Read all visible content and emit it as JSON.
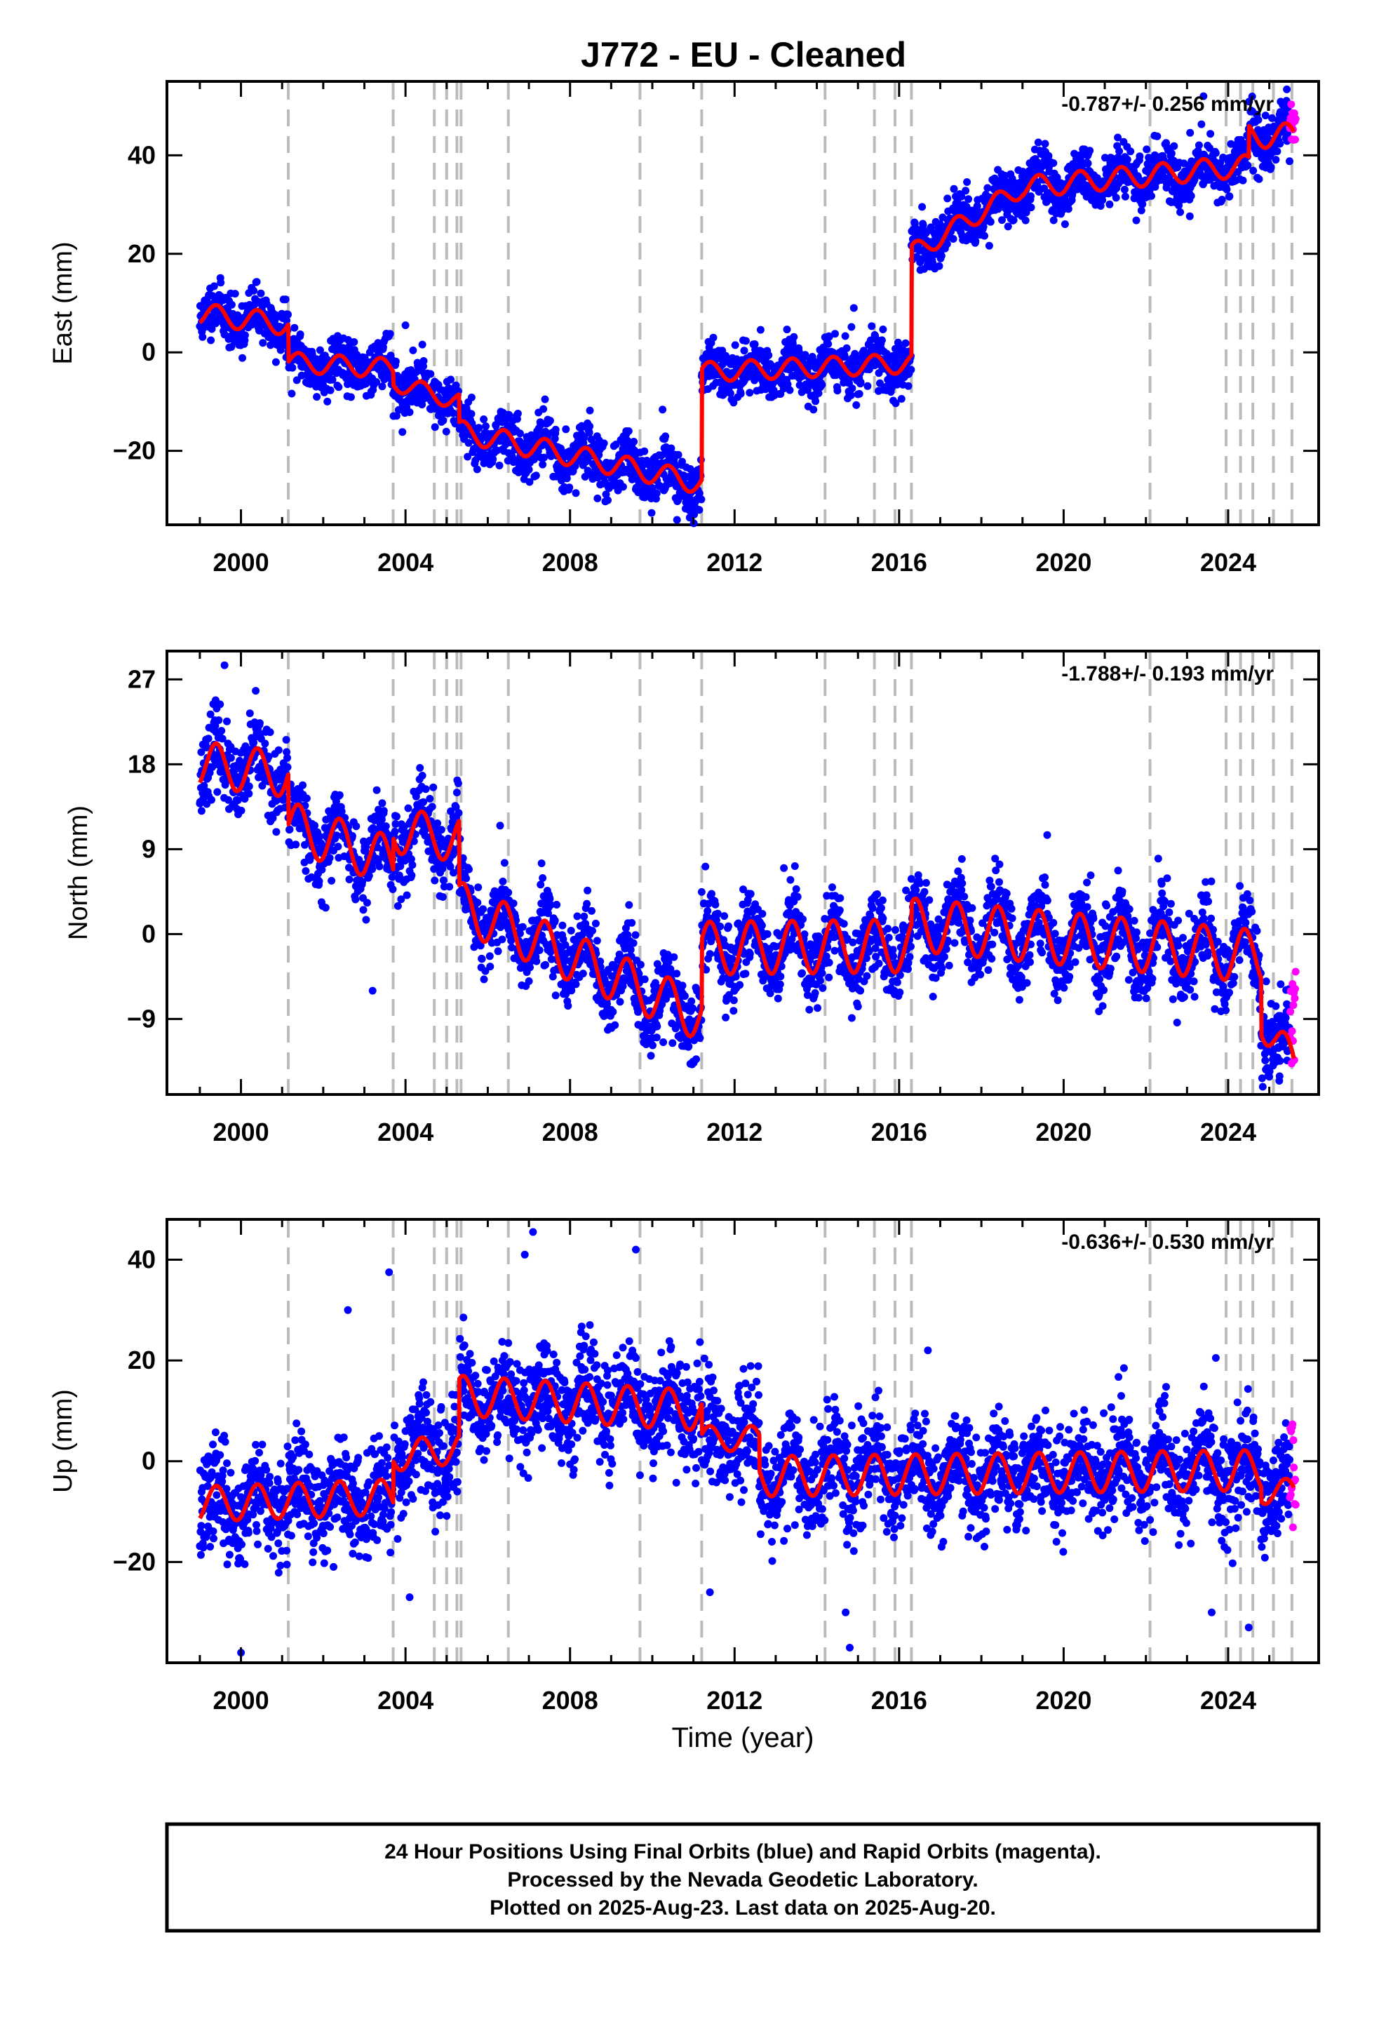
{
  "title": "J772  - EU - Cleaned",
  "footer": {
    "lines": [
      "24 Hour Positions Using Final Orbits (blue) and Rapid Orbits (magenta).",
      "Processed by the Nevada Geodetic Laboratory.",
      "Plotted on 2025-Aug-23. Last data on 2025-Aug-20."
    ]
  },
  "colors": {
    "final": "#0000ff",
    "rapid": "#ff00ff",
    "model": "#ff0000",
    "events": "#bbbbbb"
  },
  "chart_data": [
    {
      "type": "scatter",
      "component": "east",
      "ylabel": "East (mm)",
      "xlabel": "",
      "rate_label": "-0.787+/- 0.256 mm/yr",
      "xlim": [
        1998.2,
        2026.2
      ],
      "ylim": [
        -35,
        55
      ],
      "x_ticks": [
        2000,
        2004,
        2008,
        2012,
        2016,
        2020,
        2024
      ],
      "x_tick_labels": [
        "2000",
        "2004",
        "2008",
        "2012",
        "2016",
        "2020",
        "2024"
      ],
      "y_ticks": [
        -20,
        0,
        20,
        40
      ],
      "y_tick_labels": [
        "−20",
        "0",
        "20",
        "40"
      ],
      "event_lines": [
        2001.15,
        2003.7,
        2004.7,
        2005.0,
        2005.25,
        2005.35,
        2006.5,
        2009.7,
        2011.2,
        2014.2,
        2015.4,
        2015.9,
        2016.3,
        2022.1,
        2023.95,
        2024.3,
        2024.6,
        2025.1,
        2025.55
      ],
      "model": {
        "start_x": 1999.0,
        "end_x": 2025.6,
        "segments": [
          {
            "t0": 1999.0,
            "t1": 2001.15,
            "base": 7.8,
            "slope": -1.0,
            "amp": 2.2
          },
          {
            "t0": 2001.15,
            "t1": 2003.7,
            "base": -2.0,
            "slope": -0.5,
            "amp": 2.0
          },
          {
            "t0": 2003.7,
            "t1": 2005.3,
            "base": -6.0,
            "slope": -2.5,
            "amp": 1.8
          },
          {
            "t0": 2005.3,
            "t1": 2011.2,
            "base": -16.0,
            "slope": -1.8,
            "amp": 2.2
          },
          {
            "t0": 2011.2,
            "t1": 2016.3,
            "base": -4.0,
            "slope": 0.35,
            "amp": 2.0
          },
          {
            "t0": 2016.3,
            "t1": 2019.0,
            "base": 20.0,
            "slope": 5.0,
            "amp": 2.0
          },
          {
            "t0": 2019.0,
            "t1": 2024.5,
            "base": 33.5,
            "slope": 0.8,
            "amp": 2.2
          },
          {
            "t0": 2024.5,
            "t1": 2025.6,
            "base": 44.0,
            "slope": 0.0,
            "amp": 2.5
          }
        ]
      },
      "noise": 2.6,
      "outliers": [
        [
          2004.0,
          5.5
        ],
        [
          2002.1,
          -10.0
        ],
        [
          2010.6,
          -34.0
        ],
        [
          2023.4,
          52.0
        ],
        [
          2014.9,
          9.0
        ]
      ],
      "rapid": {
        "x0": 2025.5,
        "x1": 2025.64,
        "y": [
          43,
          52
        ]
      }
    },
    {
      "type": "scatter",
      "component": "north",
      "ylabel": "North (mm)",
      "xlabel": "",
      "rate_label": "-1.788+/- 0.193 mm/yr",
      "xlim": [
        1998.2,
        2026.2
      ],
      "ylim": [
        -17,
        30
      ],
      "x_ticks": [
        2000,
        2004,
        2008,
        2012,
        2016,
        2020,
        2024
      ],
      "x_tick_labels": [
        "2000",
        "2004",
        "2008",
        "2012",
        "2016",
        "2020",
        "2024"
      ],
      "y_ticks": [
        -9,
        0,
        9,
        18,
        27
      ],
      "y_tick_labels": [
        "−9",
        "0",
        "9",
        "18",
        "27"
      ],
      "event_lines": [
        2001.15,
        2003.7,
        2004.7,
        2005.0,
        2005.25,
        2005.35,
        2006.5,
        2009.7,
        2011.2,
        2014.2,
        2015.4,
        2015.9,
        2016.3,
        2022.1,
        2023.95,
        2024.3,
        2024.6,
        2025.1,
        2025.55
      ],
      "model": {
        "start_x": 1999.0,
        "end_x": 2025.6,
        "segments": [
          {
            "t0": 1999.0,
            "t1": 2001.15,
            "base": 18.0,
            "slope": -0.5,
            "amp": 2.4
          },
          {
            "t0": 2001.15,
            "t1": 2003.7,
            "base": 11.5,
            "slope": -1.5,
            "amp": 2.6
          },
          {
            "t0": 2003.7,
            "t1": 2005.3,
            "base": 11.0,
            "slope": -0.6,
            "amp": 2.4
          },
          {
            "t0": 2005.3,
            "t1": 2011.2,
            "base": 3.0,
            "slope": -2.0,
            "amp": 2.6
          },
          {
            "t0": 2011.2,
            "t1": 2016.3,
            "base": -1.5,
            "slope": 0.05,
            "amp": 2.8
          },
          {
            "t0": 2016.3,
            "t1": 2024.8,
            "base": 1.0,
            "slope": -0.4,
            "amp": 2.8
          },
          {
            "t0": 2024.8,
            "t1": 2025.6,
            "base": -9.0,
            "slope": -6.0,
            "amp": 2.0
          }
        ]
      },
      "noise": 2.0,
      "outliers": [
        [
          1999.6,
          28.5
        ],
        [
          2003.2,
          -6.0
        ],
        [
          2006.3,
          11.5
        ],
        [
          2019.6,
          10.5
        ],
        [
          2022.3,
          8.0
        ],
        [
          2013.2,
          7.0
        ]
      ],
      "rapid": {
        "x0": 2025.5,
        "x1": 2025.64,
        "y": [
          -14,
          -3
        ]
      }
    },
    {
      "type": "scatter",
      "component": "up",
      "ylabel": "Up (mm)",
      "xlabel": "Time (year)",
      "rate_label": "-0.636+/- 0.530 mm/yr",
      "xlim": [
        1998.2,
        2026.2
      ],
      "ylim": [
        -40,
        48
      ],
      "x_ticks": [
        2000,
        2004,
        2008,
        2012,
        2016,
        2020,
        2024
      ],
      "x_tick_labels": [
        "2000",
        "2004",
        "2008",
        "2012",
        "2016",
        "2020",
        "2024"
      ],
      "y_ticks": [
        -20,
        0,
        20,
        40
      ],
      "y_tick_labels": [
        "−20",
        "0",
        "20",
        "40"
      ],
      "event_lines": [
        2001.15,
        2003.7,
        2004.7,
        2005.0,
        2005.25,
        2005.35,
        2006.5,
        2009.7,
        2011.2,
        2014.2,
        2015.4,
        2015.9,
        2016.3,
        2022.1,
        2023.95,
        2024.3,
        2024.6,
        2025.1,
        2025.55
      ],
      "model": {
        "start_x": 1999.0,
        "end_x": 2025.6,
        "segments": [
          {
            "t0": 1999.0,
            "t1": 2003.7,
            "base": -8.5,
            "slope": 0.3,
            "amp": 3.5
          },
          {
            "t0": 2003.7,
            "t1": 2005.3,
            "base": 1.0,
            "slope": 1.0,
            "amp": 3.0
          },
          {
            "t0": 2005.3,
            "t1": 2011.2,
            "base": 13.0,
            "slope": -0.5,
            "amp": 4.0
          },
          {
            "t0": 2011.2,
            "t1": 2012.6,
            "base": 4.5,
            "slope": 0.0,
            "amp": 2.5
          },
          {
            "t0": 2012.6,
            "t1": 2024.8,
            "base": -3.0,
            "slope": 0.1,
            "amp": 4.0
          },
          {
            "t0": 2024.8,
            "t1": 2025.6,
            "base": -6.0,
            "slope": 0.0,
            "amp": 2.5
          }
        ]
      },
      "noise": 5.0,
      "outliers": [
        [
          2007.1,
          45.5
        ],
        [
          2006.9,
          41.0
        ],
        [
          2009.6,
          42.0
        ],
        [
          2003.6,
          37.5
        ],
        [
          2000.0,
          -38.0
        ],
        [
          2014.8,
          -37.0
        ],
        [
          2014.7,
          -30.0
        ],
        [
          2004.1,
          -27.0
        ],
        [
          2011.4,
          -26.0
        ],
        [
          2024.5,
          -33.0
        ],
        [
          2023.6,
          -30.0
        ],
        [
          2016.7,
          22.0
        ],
        [
          2023.7,
          20.5
        ],
        [
          2002.6,
          30.0
        ]
      ],
      "rapid": {
        "x0": 2025.5,
        "x1": 2025.64,
        "y": [
          -15,
          12
        ]
      }
    }
  ]
}
